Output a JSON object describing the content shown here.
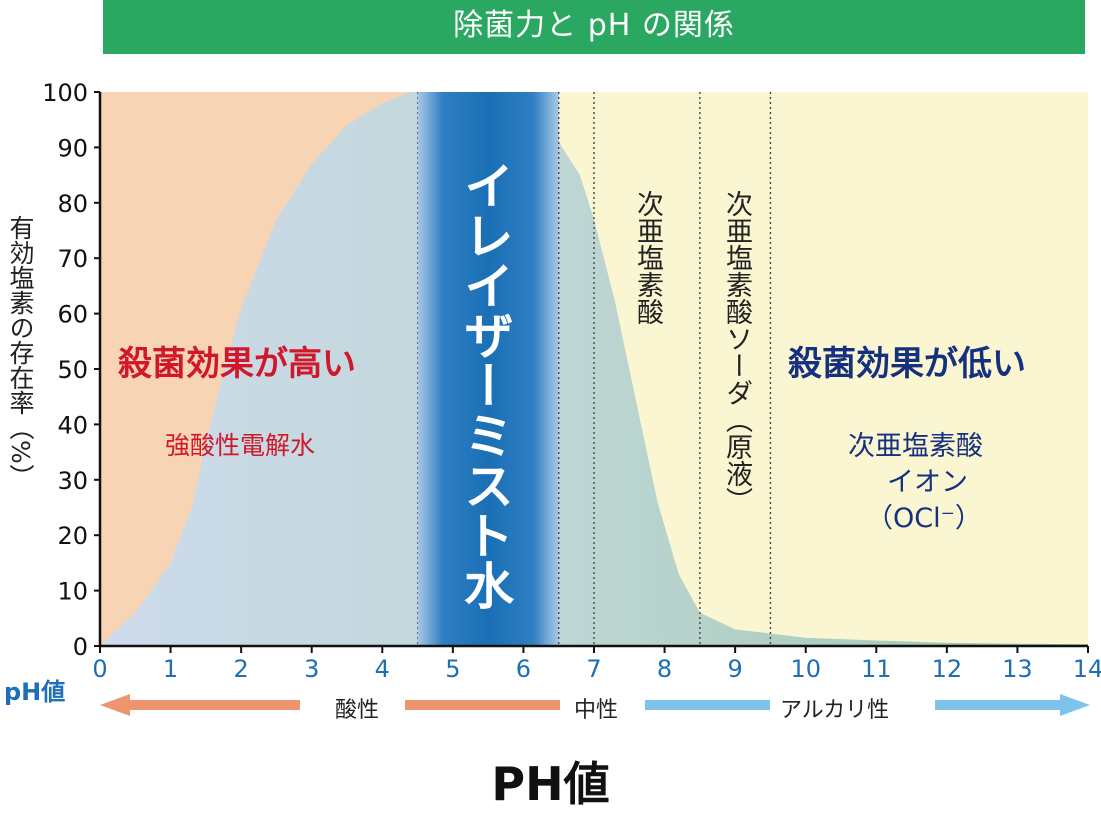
{
  "chart_data": {
    "type": "area",
    "title": "除菌力と pH の関係",
    "xlabel": "PH値",
    "ylabel": "有効塩素の存在率（%）",
    "x_axis_prefix": "pH値",
    "xlim": [
      0,
      14
    ],
    "ylim": [
      0,
      100
    ],
    "x_ticks": [
      "0",
      "1",
      "2",
      "3",
      "4",
      "5",
      "6",
      "7",
      "8",
      "9",
      "10",
      "11",
      "12",
      "13",
      "14"
    ],
    "y_ticks": [
      "0",
      "10",
      "20",
      "30",
      "40",
      "50",
      "60",
      "70",
      "80",
      "90",
      "100"
    ],
    "series": [
      {
        "name": "次亜塩素酸",
        "x": [
          0,
          0.5,
          1,
          1.3,
          1.6,
          2,
          2.5,
          3,
          3.5,
          4,
          4.4,
          4.5,
          6.5,
          6.5,
          6.8,
          7,
          7.3,
          7.6,
          7.9,
          8.2,
          8.5,
          9,
          10,
          11,
          12,
          13,
          14
        ],
        "y": [
          0,
          6,
          15,
          25,
          42,
          61,
          77,
          87,
          94,
          98,
          100,
          100,
          100,
          91,
          85,
          77,
          62,
          44,
          26,
          13,
          6,
          3,
          1.5,
          1,
          0.6,
          0.4,
          0.3
        ]
      }
    ],
    "highlight_band": {
      "x": [
        4.5,
        6.5
      ],
      "label": "イレイザーミスト水"
    },
    "divider_lines_x": [
      6.5,
      7.0,
      8.5,
      9.5
    ],
    "annotations": {
      "high_effect": "殺菌効果が高い",
      "low_effect": "殺菌効果が低い",
      "strong_acid_water": "強酸性電解水",
      "hypochlorous_acid": "次亜塩素酸",
      "sodium_hypochlorite": "次亜塩素酸ソーダ（原液）",
      "ion_line1": "次亜塩素酸",
      "ion_line2": "イオン",
      "ion_line3": "（OCl⁻）"
    },
    "ph_scale": {
      "acidic": "酸性",
      "neutral": "中性",
      "alkaline": "アルカリ性"
    },
    "colors": {
      "title_bg": "#2aa861",
      "acid_bg": "#f7d4b4",
      "alkaline_bg": "#fbf6d2",
      "curve_fill_left": "#c9d9e8",
      "curve_fill_right": "#9fc9b0",
      "band_core": "#1a6fb5",
      "band_edge": "#9dc0e4",
      "high_effect_text": "#d0182a",
      "low_effect_text": "#14307f",
      "tick_x": "#1e6fb5",
      "acid_arrow": "#ee9570",
      "alkaline_arrow": "#7ec3ea"
    }
  }
}
